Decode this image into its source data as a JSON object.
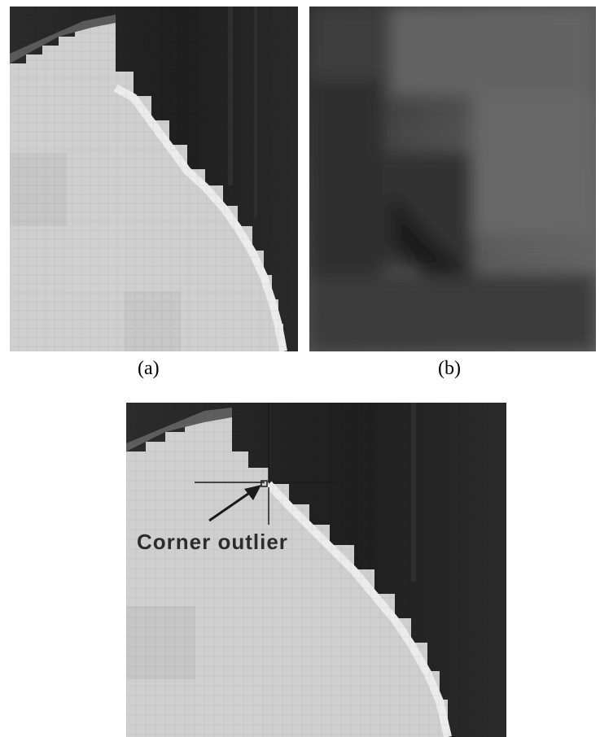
{
  "figure": {
    "captions": {
      "a": "(a)",
      "b": "(b)"
    },
    "annotation": {
      "label": "Corner outlier"
    },
    "colors": {
      "background": "#ffffff",
      "bright_region": "#d2d2d2",
      "dark_region": "#262626",
      "edge_highlight": "#ececec",
      "annotation_ink": "#1a1a1a"
    }
  }
}
